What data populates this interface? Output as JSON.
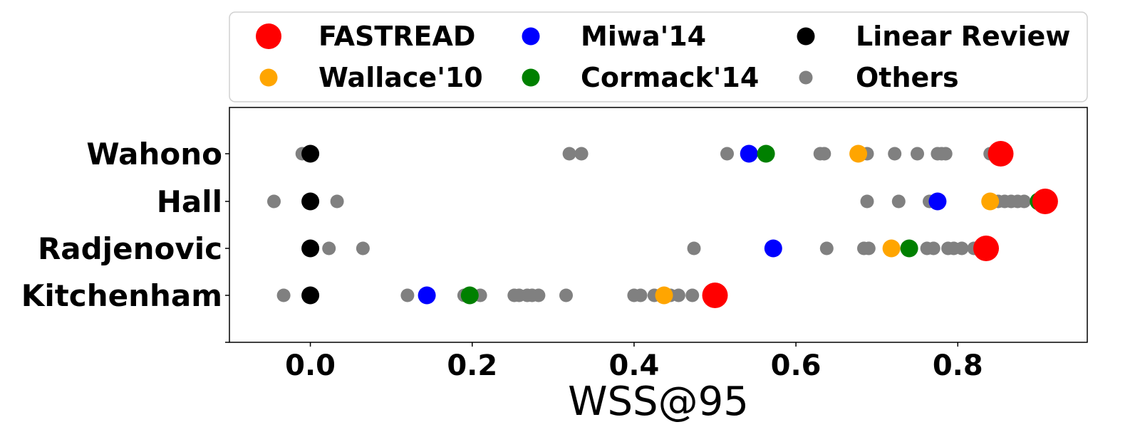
{
  "chart_data": {
    "type": "scatter",
    "xlabel": "WSS@95",
    "ylabel": "",
    "xlim": [
      -0.1,
      0.96
    ],
    "xticks": [
      "0.0",
      "0.2",
      "0.4",
      "0.6",
      "0.8"
    ],
    "xtick_values": [
      0.0,
      0.2,
      0.4,
      0.6,
      0.8
    ],
    "categories": [
      "Kitchenham",
      "Radjenovic",
      "Hall",
      "Wahono"
    ],
    "grid": false,
    "legend_position": "top",
    "series": [
      {
        "name": "Others",
        "color": "#808080",
        "marker": "small",
        "points": [
          {
            "y": "Wahono",
            "x": -0.01
          },
          {
            "y": "Wahono",
            "x": 0.32
          },
          {
            "y": "Wahono",
            "x": 0.335
          },
          {
            "y": "Wahono",
            "x": 0.515
          },
          {
            "y": "Wahono",
            "x": 0.63
          },
          {
            "y": "Wahono",
            "x": 0.635
          },
          {
            "y": "Wahono",
            "x": 0.688
          },
          {
            "y": "Wahono",
            "x": 0.722
          },
          {
            "y": "Wahono",
            "x": 0.75
          },
          {
            "y": "Wahono",
            "x": 0.775
          },
          {
            "y": "Wahono",
            "x": 0.78
          },
          {
            "y": "Wahono",
            "x": 0.785
          },
          {
            "y": "Wahono",
            "x": 0.84
          },
          {
            "y": "Hall",
            "x": -0.045
          },
          {
            "y": "Hall",
            "x": 0.033
          },
          {
            "y": "Hall",
            "x": 0.688
          },
          {
            "y": "Hall",
            "x": 0.727
          },
          {
            "y": "Hall",
            "x": 0.765
          },
          {
            "y": "Hall",
            "x": 0.85
          },
          {
            "y": "Hall",
            "x": 0.858
          },
          {
            "y": "Hall",
            "x": 0.866
          },
          {
            "y": "Hall",
            "x": 0.874
          },
          {
            "y": "Hall",
            "x": 0.882
          },
          {
            "y": "Radjenovic",
            "x": 0.023
          },
          {
            "y": "Radjenovic",
            "x": 0.065
          },
          {
            "y": "Radjenovic",
            "x": 0.474
          },
          {
            "y": "Radjenovic",
            "x": 0.638
          },
          {
            "y": "Radjenovic",
            "x": 0.684
          },
          {
            "y": "Radjenovic",
            "x": 0.69
          },
          {
            "y": "Radjenovic",
            "x": 0.762
          },
          {
            "y": "Radjenovic",
            "x": 0.77
          },
          {
            "y": "Radjenovic",
            "x": 0.788
          },
          {
            "y": "Radjenovic",
            "x": 0.795
          },
          {
            "y": "Radjenovic",
            "x": 0.805
          },
          {
            "y": "Radjenovic",
            "x": 0.82
          },
          {
            "y": "Kitchenham",
            "x": -0.033
          },
          {
            "y": "Kitchenham",
            "x": 0.12
          },
          {
            "y": "Kitchenham",
            "x": 0.19
          },
          {
            "y": "Kitchenham",
            "x": 0.21
          },
          {
            "y": "Kitchenham",
            "x": 0.252
          },
          {
            "y": "Kitchenham",
            "x": 0.258
          },
          {
            "y": "Kitchenham",
            "x": 0.268
          },
          {
            "y": "Kitchenham",
            "x": 0.274
          },
          {
            "y": "Kitchenham",
            "x": 0.282
          },
          {
            "y": "Kitchenham",
            "x": 0.316
          },
          {
            "y": "Kitchenham",
            "x": 0.4
          },
          {
            "y": "Kitchenham",
            "x": 0.408
          },
          {
            "y": "Kitchenham",
            "x": 0.425
          },
          {
            "y": "Kitchenham",
            "x": 0.445
          },
          {
            "y": "Kitchenham",
            "x": 0.455
          },
          {
            "y": "Kitchenham",
            "x": 0.472
          }
        ]
      },
      {
        "name": "Miwa'14",
        "color": "#0000ff",
        "marker": "medium",
        "points": [
          {
            "y": "Wahono",
            "x": 0.542
          },
          {
            "y": "Hall",
            "x": 0.775
          },
          {
            "y": "Radjenovic",
            "x": 0.572
          },
          {
            "y": "Kitchenham",
            "x": 0.144
          }
        ]
      },
      {
        "name": "Cormack'14",
        "color": "#008000",
        "marker": "medium",
        "points": [
          {
            "y": "Wahono",
            "x": 0.563
          },
          {
            "y": "Hall",
            "x": 0.9
          },
          {
            "y": "Radjenovic",
            "x": 0.74
          },
          {
            "y": "Kitchenham",
            "x": 0.197
          }
        ]
      },
      {
        "name": "Wallace'10",
        "color": "#ffa500",
        "marker": "medium",
        "points": [
          {
            "y": "Wahono",
            "x": 0.677
          },
          {
            "y": "Hall",
            "x": 0.84
          },
          {
            "y": "Radjenovic",
            "x": 0.718
          },
          {
            "y": "Kitchenham",
            "x": 0.437
          }
        ]
      },
      {
        "name": "Linear Review",
        "color": "#000000",
        "marker": "medium",
        "points": [
          {
            "y": "Wahono",
            "x": 0.0
          },
          {
            "y": "Hall",
            "x": 0.0
          },
          {
            "y": "Radjenovic",
            "x": 0.0
          },
          {
            "y": "Kitchenham",
            "x": 0.0
          }
        ]
      },
      {
        "name": "FASTREAD",
        "color": "#ff0000",
        "marker": "large",
        "points": [
          {
            "y": "Wahono",
            "x": 0.853
          },
          {
            "y": "Hall",
            "x": 0.908
          },
          {
            "y": "Radjenovic",
            "x": 0.835
          },
          {
            "y": "Kitchenham",
            "x": 0.5
          }
        ]
      }
    ],
    "legend": [
      {
        "name": "FASTREAD",
        "color": "#ff0000",
        "marker": "large"
      },
      {
        "name": "Miwa'14",
        "color": "#0000ff",
        "marker": "medium"
      },
      {
        "name": "Linear Review",
        "color": "#000000",
        "marker": "medium"
      },
      {
        "name": "Wallace'10",
        "color": "#ffa500",
        "marker": "medium"
      },
      {
        "name": "Cormack'14",
        "color": "#008000",
        "marker": "medium"
      },
      {
        "name": "Others",
        "color": "#808080",
        "marker": "small"
      }
    ]
  }
}
